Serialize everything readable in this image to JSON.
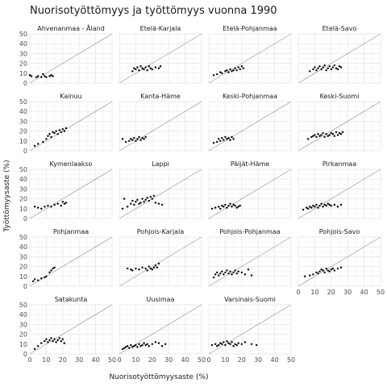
{
  "chart_data": {
    "type": "scatter",
    "title": "Nuorisotyöttömyys ja työttömyys vuonna 1990",
    "xlabel": "Nuorisotyöttömyysaste (%)",
    "ylabel": "Työttömyysaste (%)",
    "xlim": [
      0,
      50
    ],
    "ylim": [
      0,
      50
    ],
    "xticks": [
      0,
      10,
      20,
      30,
      40,
      50
    ],
    "yticks": [
      0,
      10,
      20,
      30,
      40,
      50
    ],
    "reference_line": "y = x",
    "grid": true,
    "legend": "none",
    "facet_columns": 4,
    "point_color": "#000000",
    "line_color": "#999999",
    "panels": [
      {
        "name": "Ahvenanmaa - Åland",
        "points": [
          [
            0,
            8
          ],
          [
            1,
            7
          ],
          [
            4,
            6
          ],
          [
            5,
            7
          ],
          [
            7,
            6
          ],
          [
            8,
            9
          ],
          [
            9,
            7
          ],
          [
            10,
            6
          ],
          [
            12,
            7
          ],
          [
            13,
            8
          ],
          [
            14,
            7
          ]
        ]
      },
      {
        "name": "Etelä-Karjala",
        "points": [
          [
            8,
            12
          ],
          [
            9,
            15
          ],
          [
            10,
            14
          ],
          [
            11,
            16
          ],
          [
            12,
            13
          ],
          [
            13,
            17
          ],
          [
            14,
            15
          ],
          [
            15,
            14
          ],
          [
            16,
            16
          ],
          [
            17,
            13
          ],
          [
            18,
            17
          ],
          [
            19,
            15
          ],
          [
            20,
            14
          ],
          [
            22,
            16
          ],
          [
            24,
            15
          ],
          [
            25,
            17
          ]
        ]
      },
      {
        "name": "Etelä-Pohjanmaa",
        "points": [
          [
            3,
            8
          ],
          [
            5,
            9
          ],
          [
            7,
            11
          ],
          [
            8,
            10
          ],
          [
            10,
            12
          ],
          [
            11,
            13
          ],
          [
            12,
            11
          ],
          [
            13,
            14
          ],
          [
            14,
            12
          ],
          [
            15,
            13
          ],
          [
            16,
            15
          ],
          [
            17,
            13
          ],
          [
            18,
            16
          ],
          [
            19,
            14
          ],
          [
            20,
            17
          ],
          [
            21,
            15
          ]
        ]
      },
      {
        "name": "Etelä-Savo",
        "points": [
          [
            7,
            12
          ],
          [
            9,
            14
          ],
          [
            10,
            16
          ],
          [
            11,
            13
          ],
          [
            12,
            15
          ],
          [
            13,
            17
          ],
          [
            14,
            14
          ],
          [
            15,
            16
          ],
          [
            16,
            18
          ],
          [
            17,
            13
          ],
          [
            18,
            15
          ],
          [
            19,
            17
          ],
          [
            20,
            14
          ],
          [
            21,
            16
          ],
          [
            22,
            18
          ],
          [
            23,
            15
          ],
          [
            24,
            14
          ],
          [
            25,
            17
          ],
          [
            26,
            16
          ]
        ]
      },
      {
        "name": "Kainuu",
        "points": [
          [
            3,
            5
          ],
          [
            5,
            7
          ],
          [
            8,
            9
          ],
          [
            10,
            12
          ],
          [
            11,
            15
          ],
          [
            12,
            17
          ],
          [
            13,
            14
          ],
          [
            14,
            19
          ],
          [
            15,
            18
          ],
          [
            16,
            20
          ],
          [
            17,
            17
          ],
          [
            18,
            21
          ],
          [
            19,
            19
          ],
          [
            20,
            22
          ],
          [
            21,
            20
          ],
          [
            22,
            23
          ]
        ]
      },
      {
        "name": "Kanta-Häme",
        "points": [
          [
            2,
            12
          ],
          [
            4,
            9
          ],
          [
            6,
            10
          ],
          [
            7,
            12
          ],
          [
            8,
            11
          ],
          [
            9,
            13
          ],
          [
            10,
            10
          ],
          [
            11,
            12
          ],
          [
            12,
            14
          ],
          [
            13,
            11
          ],
          [
            14,
            13
          ],
          [
            15,
            12
          ],
          [
            16,
            14
          ]
        ]
      },
      {
        "name": "Keski-Pohjanmaa",
        "points": [
          [
            3,
            8
          ],
          [
            5,
            9
          ],
          [
            6,
            12
          ],
          [
            7,
            10
          ],
          [
            8,
            13
          ],
          [
            9,
            11
          ],
          [
            10,
            14
          ],
          [
            11,
            12
          ],
          [
            12,
            13
          ],
          [
            13,
            11
          ],
          [
            14,
            14
          ],
          [
            15,
            12
          ]
        ]
      },
      {
        "name": "Keski-Suomi",
        "points": [
          [
            6,
            12
          ],
          [
            8,
            14
          ],
          [
            9,
            15
          ],
          [
            10,
            16
          ],
          [
            11,
            14
          ],
          [
            12,
            17
          ],
          [
            13,
            15
          ],
          [
            14,
            16
          ],
          [
            15,
            18
          ],
          [
            16,
            14
          ],
          [
            17,
            17
          ],
          [
            18,
            15
          ],
          [
            19,
            16
          ],
          [
            20,
            18
          ],
          [
            21,
            17
          ],
          [
            22,
            15
          ],
          [
            23,
            19
          ],
          [
            24,
            16
          ],
          [
            25,
            18
          ],
          [
            26,
            17
          ],
          [
            27,
            19
          ]
        ]
      },
      {
        "name": "Kymenlaakso",
        "points": [
          [
            3,
            12
          ],
          [
            5,
            11
          ],
          [
            7,
            10
          ],
          [
            9,
            12
          ],
          [
            11,
            13
          ],
          [
            13,
            12
          ],
          [
            15,
            14
          ],
          [
            17,
            15
          ],
          [
            19,
            13
          ],
          [
            20,
            17
          ],
          [
            21,
            15
          ],
          [
            22,
            16
          ]
        ]
      },
      {
        "name": "Lappi",
        "points": [
          [
            2,
            10
          ],
          [
            3,
            20
          ],
          [
            5,
            12
          ],
          [
            7,
            15
          ],
          [
            8,
            18
          ],
          [
            9,
            14
          ],
          [
            10,
            17
          ],
          [
            11,
            19
          ],
          [
            12,
            15
          ],
          [
            13,
            16
          ],
          [
            14,
            20
          ],
          [
            15,
            17
          ],
          [
            16,
            19
          ],
          [
            17,
            21
          ],
          [
            18,
            18
          ],
          [
            19,
            22
          ],
          [
            20,
            20
          ],
          [
            21,
            23
          ],
          [
            22,
            16
          ],
          [
            24,
            15
          ],
          [
            26,
            14
          ]
        ]
      },
      {
        "name": "Päijät-Häme",
        "points": [
          [
            2,
            10
          ],
          [
            4,
            11
          ],
          [
            6,
            12
          ],
          [
            7,
            10
          ],
          [
            8,
            13
          ],
          [
            9,
            12
          ],
          [
            10,
            14
          ],
          [
            11,
            11
          ],
          [
            12,
            13
          ],
          [
            13,
            15
          ],
          [
            14,
            12
          ],
          [
            15,
            14
          ],
          [
            16,
            13
          ],
          [
            17,
            11
          ],
          [
            18,
            12
          ],
          [
            19,
            13
          ]
        ]
      },
      {
        "name": "Pirkanmaa",
        "points": [
          [
            3,
            9
          ],
          [
            5,
            11
          ],
          [
            6,
            10
          ],
          [
            7,
            12
          ],
          [
            8,
            11
          ],
          [
            9,
            13
          ],
          [
            10,
            12
          ],
          [
            11,
            14
          ],
          [
            12,
            11
          ],
          [
            13,
            13
          ],
          [
            14,
            15
          ],
          [
            15,
            12
          ],
          [
            16,
            14
          ],
          [
            17,
            13
          ],
          [
            18,
            15
          ],
          [
            19,
            14
          ],
          [
            20,
            13
          ],
          [
            22,
            14
          ],
          [
            24,
            12
          ],
          [
            26,
            14
          ]
        ]
      },
      {
        "name": "Pohjanmaa",
        "points": [
          [
            2,
            5
          ],
          [
            3,
            7
          ],
          [
            5,
            6
          ],
          [
            7,
            8
          ],
          [
            9,
            9
          ],
          [
            10,
            10
          ],
          [
            12,
            14
          ],
          [
            13,
            16
          ],
          [
            14,
            18
          ],
          [
            15,
            19
          ]
        ]
      },
      {
        "name": "Pohjois-Karjala",
        "points": [
          [
            5,
            18
          ],
          [
            7,
            17
          ],
          [
            8,
            16
          ],
          [
            10,
            18
          ],
          [
            12,
            17
          ],
          [
            14,
            19
          ],
          [
            16,
            18
          ],
          [
            17,
            16
          ],
          [
            18,
            20
          ],
          [
            19,
            18
          ],
          [
            20,
            17
          ],
          [
            21,
            19
          ],
          [
            22,
            21
          ],
          [
            23,
            19
          ],
          [
            24,
            23
          ]
        ]
      },
      {
        "name": "Pohjois-Pohjanmaa",
        "points": [
          [
            3,
            9
          ],
          [
            4,
            12
          ],
          [
            5,
            14
          ],
          [
            6,
            11
          ],
          [
            7,
            13
          ],
          [
            8,
            15
          ],
          [
            9,
            12
          ],
          [
            10,
            14
          ],
          [
            11,
            16
          ],
          [
            12,
            13
          ],
          [
            13,
            15
          ],
          [
            14,
            12
          ],
          [
            15,
            14
          ],
          [
            16,
            16
          ],
          [
            17,
            13
          ],
          [
            18,
            15
          ],
          [
            20,
            14
          ],
          [
            22,
            12
          ],
          [
            24,
            17
          ],
          [
            26,
            11
          ]
        ]
      },
      {
        "name": "Pohjois-Savo",
        "points": [
          [
            4,
            10
          ],
          [
            7,
            11
          ],
          [
            9,
            12
          ],
          [
            11,
            14
          ],
          [
            12,
            13
          ],
          [
            13,
            15
          ],
          [
            14,
            17
          ],
          [
            15,
            16
          ],
          [
            16,
            14
          ],
          [
            17,
            18
          ],
          [
            18,
            16
          ],
          [
            19,
            15
          ],
          [
            20,
            17
          ],
          [
            21,
            18
          ],
          [
            22,
            16
          ],
          [
            24,
            18
          ],
          [
            26,
            19
          ]
        ]
      },
      {
        "name": "Satakunta",
        "points": [
          [
            3,
            5
          ],
          [
            5,
            8
          ],
          [
            7,
            11
          ],
          [
            9,
            13
          ],
          [
            10,
            15
          ],
          [
            11,
            12
          ],
          [
            12,
            14
          ],
          [
            13,
            16
          ],
          [
            14,
            13
          ],
          [
            15,
            15
          ],
          [
            16,
            12
          ],
          [
            17,
            14
          ],
          [
            18,
            16
          ],
          [
            19,
            13
          ],
          [
            20,
            15
          ],
          [
            21,
            11
          ]
        ]
      },
      {
        "name": "Uusimaa",
        "points": [
          [
            2,
            5
          ],
          [
            3,
            6
          ],
          [
            4,
            7
          ],
          [
            5,
            8
          ],
          [
            6,
            6
          ],
          [
            7,
            9
          ],
          [
            8,
            7
          ],
          [
            9,
            8
          ],
          [
            10,
            9
          ],
          [
            11,
            7
          ],
          [
            12,
            10
          ],
          [
            13,
            8
          ],
          [
            14,
            9
          ],
          [
            15,
            11
          ],
          [
            16,
            9
          ],
          [
            17,
            10
          ],
          [
            18,
            8
          ],
          [
            20,
            10
          ],
          [
            22,
            12
          ],
          [
            24,
            11
          ],
          [
            26,
            8
          ],
          [
            28,
            10
          ]
        ]
      },
      {
        "name": "Varsinais-Suomi",
        "points": [
          [
            2,
            9
          ],
          [
            4,
            10
          ],
          [
            5,
            8
          ],
          [
            6,
            9
          ],
          [
            7,
            11
          ],
          [
            8,
            10
          ],
          [
            9,
            12
          ],
          [
            10,
            9
          ],
          [
            11,
            13
          ],
          [
            12,
            11
          ],
          [
            13,
            10
          ],
          [
            14,
            12
          ],
          [
            15,
            8
          ],
          [
            16,
            10
          ],
          [
            17,
            9
          ],
          [
            18,
            11
          ],
          [
            20,
            10
          ],
          [
            22,
            12
          ],
          [
            26,
            10
          ],
          [
            29,
            9
          ]
        ]
      }
    ]
  }
}
